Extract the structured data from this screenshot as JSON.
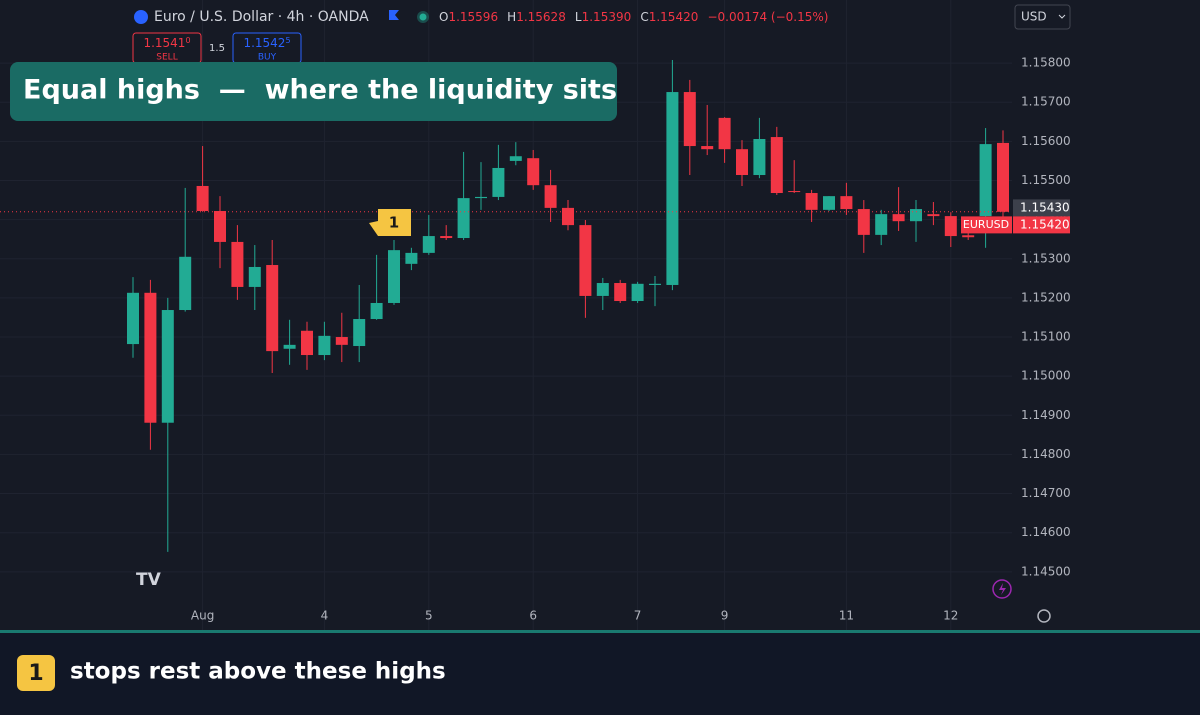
{
  "header": {
    "symbol": "Euro / U.S. Dollar · 4h · OANDA",
    "o_label": "O",
    "open": "1.15596",
    "h_label": "H",
    "high": "1.15628",
    "l_label": "L",
    "low": "1.15390",
    "c_label": "C",
    "close": "1.15420",
    "change": "−0.00174 (−0.15%)",
    "currency": "USD"
  },
  "trade": {
    "sell_price": "1.1541",
    "sell_sup": "0",
    "sell_label": "SELL",
    "spread": "1.5",
    "buy_price": "1.1542",
    "buy_sup": "5",
    "buy_label": "BUY"
  },
  "annotation": {
    "title": "Equal highs  —  where the liquidity sits",
    "marker": "1"
  },
  "footer": {
    "badge": "1",
    "text": "stops rest above these highs"
  },
  "chart_data": {
    "type": "candlestick",
    "categories": [
      null,
      null,
      null,
      null,
      "Aug",
      null,
      null,
      null,
      null,
      null,
      null,
      "4",
      null,
      null,
      null,
      null,
      null,
      "5",
      null,
      null,
      null,
      null,
      null,
      "6",
      null,
      null,
      null,
      null,
      null,
      "7",
      null,
      null,
      null,
      null,
      "9",
      null,
      null,
      null,
      null,
      null,
      null,
      "11",
      null,
      null,
      null,
      null,
      null,
      "12",
      null,
      null,
      null
    ],
    "open": [
      1.15082,
      1.15213,
      1.14881,
      1.15169,
      1.15486,
      1.15422,
      1.15343,
      1.15228,
      1.15284,
      1.1507,
      1.15116,
      1.15054,
      1.151,
      1.15077,
      1.15146,
      1.15187,
      1.15287,
      1.15315,
      1.15358,
      1.15353,
      1.15455,
      1.15458,
      1.1555,
      1.15557,
      1.15488,
      1.1543,
      1.15386,
      1.15205,
      1.15238,
      1.15192,
      1.15233,
      1.15233,
      1.15726,
      1.15588,
      1.1566,
      1.1558,
      1.15514,
      1.15611,
      1.15473,
      1.15468,
      1.15425,
      1.1546,
      1.15427,
      1.15361,
      1.15414,
      1.15396,
      1.15414,
      1.15409,
      1.1536,
      1.15409,
      1.15596
    ],
    "high": [
      1.15253,
      1.15246,
      1.152,
      1.15481,
      1.15588,
      1.1546,
      1.15386,
      1.15335,
      1.15348,
      1.15144,
      1.15139,
      1.15139,
      1.15162,
      1.15233,
      1.1531,
      1.15348,
      1.15328,
      1.15412,
      1.15386,
      1.15573,
      1.15547,
      1.15591,
      1.15598,
      1.15578,
      1.15527,
      1.1545,
      1.15399,
      1.15251,
      1.15246,
      1.15241,
      1.15256,
      1.15808,
      1.15757,
      1.15693,
      1.15662,
      1.15603,
      1.1566,
      1.15637,
      1.15552,
      1.15476,
      1.1546,
      1.15494,
      1.1545,
      1.15425,
      1.15483,
      1.1545,
      1.15445,
      1.15419,
      1.15373,
      1.15634,
      1.15628
    ],
    "low": [
      1.15047,
      1.14812,
      1.14551,
      1.15165,
      1.1542,
      1.15276,
      1.15195,
      1.15169,
      1.15008,
      1.15029,
      1.15016,
      1.15041,
      1.15036,
      1.15036,
      1.15144,
      1.15182,
      1.15271,
      1.1531,
      1.15348,
      1.15348,
      1.15425,
      1.1545,
      1.15539,
      1.15476,
      1.15394,
      1.15373,
      1.15149,
      1.15169,
      1.15187,
      1.15187,
      1.15179,
      1.1522,
      1.15514,
      1.15565,
      1.15545,
      1.15486,
      1.15506,
      1.15463,
      1.15468,
      1.15394,
      1.15422,
      1.15412,
      1.15315,
      1.15335,
      1.15371,
      1.15343,
      1.15386,
      1.1533,
      1.15348,
      1.15328,
      1.1539
    ],
    "close": [
      1.15213,
      1.14881,
      1.15169,
      1.15305,
      1.15422,
      1.15343,
      1.15228,
      1.15279,
      1.15064,
      1.1508,
      1.15054,
      1.15103,
      1.1508,
      1.15146,
      1.15187,
      1.15322,
      1.15315,
      1.15358,
      1.15353,
      1.15455,
      1.15458,
      1.15532,
      1.15562,
      1.15488,
      1.1543,
      1.15386,
      1.15205,
      1.15238,
      1.15192,
      1.15236,
      1.15236,
      1.15726,
      1.15588,
      1.1558,
      1.1558,
      1.15514,
      1.15606,
      1.15468,
      1.15471,
      1.15425,
      1.1546,
      1.15427,
      1.15361,
      1.15414,
      1.15396,
      1.15427,
      1.15409,
      1.15358,
      1.15355,
      1.15593,
      1.1542
    ],
    "up_color": "#22ab94",
    "down_color": "#f23645",
    "ylim": [
      1.14428,
      1.15859
    ],
    "yticks": [
      {
        "value": 1.158,
        "label": "1.15800"
      },
      {
        "value": 1.157,
        "label": "1.15700"
      },
      {
        "value": 1.156,
        "label": "1.15600"
      },
      {
        "value": 1.155,
        "label": "1.15500"
      },
      {
        "value": 1.154,
        "label": "1.15400"
      },
      {
        "value": 1.153,
        "label": "1.15300"
      },
      {
        "value": 1.152,
        "label": "1.15200"
      },
      {
        "value": 1.151,
        "label": "1.15100"
      },
      {
        "value": 1.15,
        "label": "1.15000"
      },
      {
        "value": 1.149,
        "label": "1.14900"
      },
      {
        "value": 1.148,
        "label": "1.14800"
      },
      {
        "value": 1.147,
        "label": "1.14700"
      },
      {
        "value": 1.146,
        "label": "1.14600"
      },
      {
        "value": 1.145,
        "label": "1.14500"
      }
    ],
    "grid": true,
    "price_labels": [
      {
        "value": 1.1543,
        "label": "1.15430"
      },
      {
        "value": 1.1542,
        "label": "1.15420",
        "symbol": "EURUSD"
      }
    ]
  }
}
